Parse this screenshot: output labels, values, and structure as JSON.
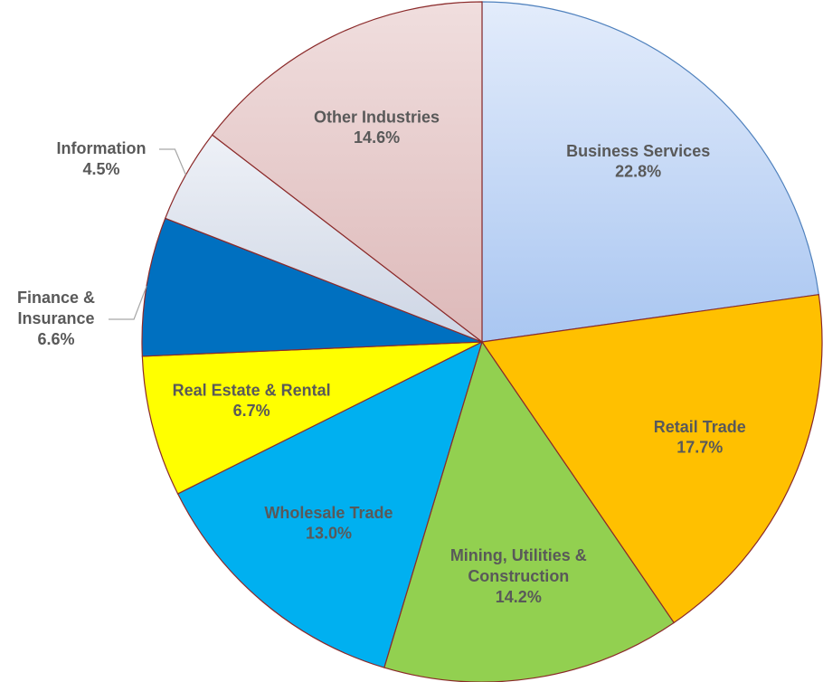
{
  "chart_data": {
    "type": "pie",
    "categories": [
      "Business Services",
      "Retail Trade",
      "Mining, Utilities &\nConstruction",
      "Wholesale Trade",
      "Real Estate & Rental",
      "Finance &\nInsurance",
      "Information",
      "Other Industries"
    ],
    "values": [
      22.8,
      17.7,
      14.2,
      13.0,
      6.7,
      6.6,
      4.5,
      14.6
    ],
    "value_labels": [
      "22.8%",
      "17.7%",
      "14.2%",
      "13.0%",
      "6.7%",
      "6.6%",
      "4.5%",
      "14.6%"
    ],
    "colors": [
      "#c6d9f5",
      "#ffc000",
      "#92d050",
      "#00b0f0",
      "#ffff00",
      "#0070c0",
      "#dde3ee",
      "#e8caca"
    ]
  }
}
